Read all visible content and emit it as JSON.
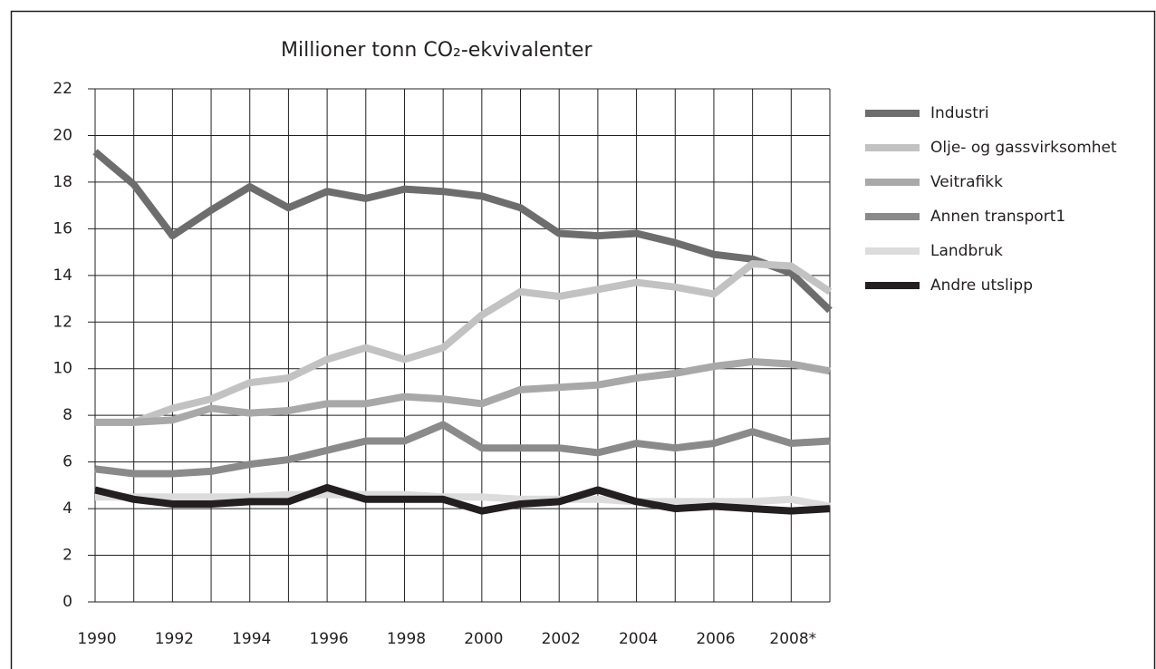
{
  "chart_data": {
    "type": "line",
    "title": "Millioner tonn CO₂-ekvivalenter",
    "categories": [
      "1990",
      null,
      "1992",
      null,
      "1994",
      null,
      "1996",
      null,
      "1998",
      null,
      "2000",
      null,
      "2002",
      null,
      "2004",
      null,
      "2006",
      null,
      "2008*",
      null
    ],
    "series": [
      {
        "name": "Industri",
        "color": "#6d6d6d",
        "values": [
          19.3,
          17.9,
          15.7,
          16.8,
          17.8,
          16.9,
          17.6,
          17.3,
          17.7,
          17.6,
          17.4,
          16.9,
          15.8,
          15.7,
          15.8,
          15.4,
          14.9,
          14.7,
          14.1,
          12.5
        ]
      },
      {
        "name": "Olje- og gassvirksomhet",
        "color": "#c2c2c2",
        "values": [
          7.7,
          7.7,
          8.3,
          8.7,
          9.4,
          9.6,
          10.4,
          10.9,
          10.4,
          10.9,
          12.3,
          13.3,
          13.1,
          13.4,
          13.7,
          13.5,
          13.2,
          14.5,
          14.4,
          13.3
        ]
      },
      {
        "name": "Veitrafikk",
        "color": "#a8a8a8",
        "values": [
          7.7,
          7.7,
          7.8,
          8.3,
          8.1,
          8.2,
          8.5,
          8.5,
          8.8,
          8.7,
          8.5,
          9.1,
          9.2,
          9.3,
          9.6,
          9.8,
          10.1,
          10.3,
          10.2,
          9.9
        ]
      },
      {
        "name": "Annen transport1",
        "color": "#8a8a8a",
        "values": [
          5.7,
          5.5,
          5.5,
          5.6,
          5.9,
          6.1,
          6.5,
          6.9,
          6.9,
          7.6,
          6.6,
          6.6,
          6.6,
          6.4,
          6.8,
          6.6,
          6.8,
          7.3,
          6.8,
          6.9
        ]
      },
      {
        "name": "Landbruk",
        "color": "#dcdcdc",
        "values": [
          4.5,
          4.5,
          4.5,
          4.5,
          4.5,
          4.6,
          4.6,
          4.6,
          4.6,
          4.5,
          4.5,
          4.4,
          4.4,
          4.4,
          4.3,
          4.3,
          4.3,
          4.3,
          4.4,
          4.1
        ]
      },
      {
        "name": "Andre utslipp",
        "color": "#231f20",
        "values": [
          4.8,
          4.4,
          4.2,
          4.2,
          4.3,
          4.3,
          4.9,
          4.4,
          4.4,
          4.4,
          3.9,
          4.2,
          4.3,
          4.8,
          4.3,
          4.0,
          4.1,
          4.0,
          3.9,
          4.0
        ]
      }
    ],
    "ylim": [
      0,
      22
    ],
    "yticks": [
      0,
      2,
      4,
      6,
      8,
      10,
      12,
      14,
      16,
      18,
      20,
      22
    ],
    "grid": true,
    "legend": "right"
  }
}
